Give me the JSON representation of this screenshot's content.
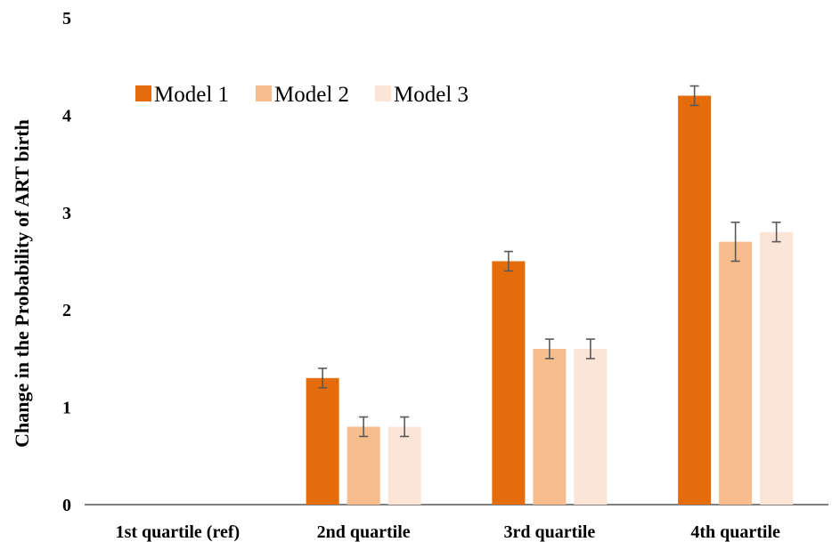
{
  "chart_data": {
    "type": "bar",
    "title": "",
    "xlabel": "",
    "ylabel": "Change in the Probability of ART birth",
    "ylim": [
      0,
      5
    ],
    "yticks": [
      "0",
      "1",
      "2",
      "3",
      "4",
      "5"
    ],
    "categories": [
      "1st quartile (ref)",
      "2nd quartile",
      "3rd quartile",
      "4th quartile"
    ],
    "series": [
      {
        "name": "Model 1",
        "color": "#E46C0A",
        "values": [
          null,
          1.3,
          2.5,
          4.2
        ],
        "error": [
          null,
          0.1,
          0.1,
          0.1
        ]
      },
      {
        "name": "Model 2",
        "color": "#F8BD8C",
        "values": [
          null,
          0.8,
          1.6,
          2.7
        ],
        "error": [
          null,
          0.1,
          0.1,
          0.2
        ]
      },
      {
        "name": "Model 3",
        "color": "#FCE5D6",
        "values": [
          null,
          0.8,
          1.6,
          2.8
        ],
        "error": [
          null,
          0.1,
          0.1,
          0.1
        ]
      }
    ],
    "grid": false,
    "legend_position": "top-left"
  }
}
